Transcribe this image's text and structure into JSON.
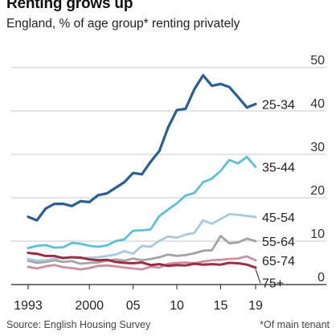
{
  "chart_data": {
    "type": "line",
    "title": "Renting grows up",
    "subtitle": "England, % of age group* renting privately",
    "source": "Source: English Housing Survey",
    "footnote": "*Of main tenant",
    "x_tick_labels": [
      "1993",
      "2000",
      "05",
      "10",
      "15",
      "19"
    ],
    "x_ticks": [
      1993,
      2000,
      2005,
      2010,
      2015,
      2019
    ],
    "xlim": [
      1993,
      2019
    ],
    "ylim": [
      0,
      50
    ],
    "y_ticks": [
      0,
      10,
      20,
      30,
      40,
      50
    ],
    "grid": true,
    "x": [
      1993,
      1994,
      1995,
      1996,
      1997,
      1998,
      1999,
      2000,
      2001,
      2002,
      2003,
      2004,
      2005,
      2006,
      2007,
      2008,
      2009,
      2010,
      2011,
      2012,
      2013,
      2014,
      2015,
      2016,
      2017,
      2018,
      2019
    ],
    "series": [
      {
        "name": "25-34",
        "color": "#2a5f96",
        "width": 3.2,
        "values": [
          15.6,
          14.8,
          17.5,
          18.6,
          18.6,
          18.1,
          19.2,
          19.0,
          20.6,
          21.0,
          22.3,
          23.6,
          25.7,
          25.4,
          28.3,
          30.8,
          36.2,
          40.2,
          40.5,
          45.0,
          48.2,
          45.8,
          46.2,
          45.5,
          43.2,
          40.8,
          41.6
        ]
      },
      {
        "name": "35-44",
        "color": "#5bc0d8",
        "width": 2.8,
        "values": [
          8.4,
          8.9,
          9.1,
          8.5,
          8.6,
          9.6,
          9.4,
          8.9,
          8.7,
          9.0,
          10.0,
          10.4,
          12.4,
          12.5,
          12.7,
          15.8,
          17.3,
          18.7,
          20.5,
          21.1,
          23.6,
          24.4,
          26.2,
          28.7,
          27.9,
          29.4,
          27.1
        ]
      },
      {
        "name": "45-54",
        "color": "#a9c9dc",
        "width": 2.8,
        "values": [
          5.9,
          5.5,
          5.6,
          6.0,
          6.2,
          6.3,
          6.1,
          6.2,
          6.3,
          6.6,
          6.9,
          7.7,
          7.1,
          8.9,
          8.7,
          10.1,
          11.1,
          10.8,
          11.5,
          11.9,
          14.8,
          14.0,
          15.1,
          16.2,
          16.1,
          15.8,
          15.6
        ]
      },
      {
        "name": "55-64",
        "color": "#a3a3a3",
        "width": 2.8,
        "values": [
          5.5,
          5.0,
          5.2,
          5.6,
          5.2,
          5.4,
          4.8,
          5.0,
          5.1,
          5.5,
          5.8,
          5.5,
          6.0,
          5.6,
          5.9,
          6.3,
          6.9,
          6.6,
          6.8,
          7.2,
          7.8,
          7.9,
          11.2,
          9.5,
          9.7,
          10.6,
          10.0
        ]
      },
      {
        "name": "65-74",
        "color": "#cf8f9f",
        "width": 2.8,
        "values": [
          4.1,
          3.7,
          4.2,
          4.5,
          4.0,
          3.8,
          3.5,
          3.8,
          4.3,
          4.4,
          4.2,
          3.9,
          3.7,
          3.5,
          4.1,
          3.9,
          4.8,
          5.0,
          5.1,
          4.9,
          5.3,
          5.6,
          5.7,
          5.9,
          6.0,
          6.5,
          5.6
        ]
      },
      {
        "name": "75+",
        "color": "#9b2d44",
        "width": 3.0,
        "values": [
          7.3,
          7.1,
          6.6,
          6.6,
          6.1,
          6.3,
          6.2,
          5.8,
          5.6,
          5.7,
          5.2,
          5.0,
          4.9,
          5.1,
          4.5,
          4.7,
          4.3,
          4.5,
          4.4,
          4.8,
          4.6,
          4.7,
          4.6,
          5.0,
          4.9,
          4.6,
          3.9
        ]
      }
    ],
    "label_ys": [
      41.6,
      27.1,
      15.6,
      10.0,
      5.6,
      0.5
    ]
  }
}
